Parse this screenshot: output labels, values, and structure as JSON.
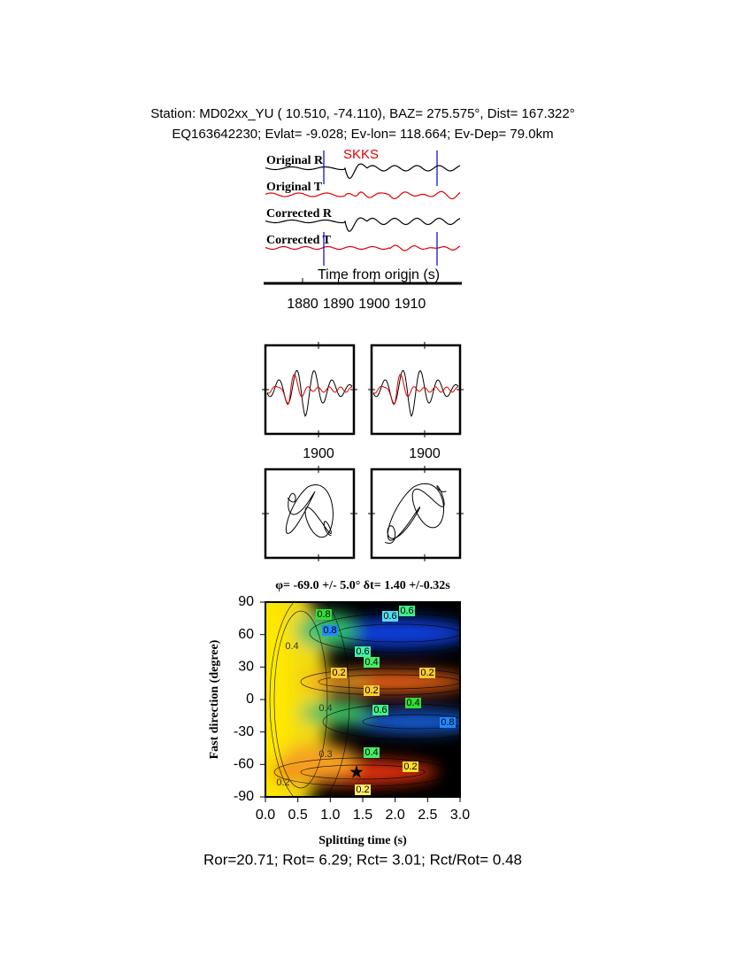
{
  "header": {
    "line1": "Station: MD02xx_YU (  10.510,  -74.110), BAZ=  275.575°, Dist=  167.322°",
    "line2": "EQ163642230; Evlat=  -9.028; Ev-lon= 118.664; Ev-Dep= 79.0km"
  },
  "traces": {
    "labels": [
      "Original R",
      "Original T",
      "Corrected R",
      "Corrected T"
    ],
    "phase": "SKKS",
    "xlabel": "Time from origin (s)",
    "xticks": [
      "1880",
      "1890",
      "1900",
      "1910"
    ]
  },
  "windows": {
    "xticks": [
      "1900",
      "1900"
    ]
  },
  "grid_search": {
    "title": "φ= -69.0 +/- 5.0° δt= 1.40 +/-0.32s",
    "xlabel": "Splitting time (s)",
    "ylabel": "Fast direction (degree)",
    "xticks": [
      "0.0",
      "0.5",
      "1.0",
      "1.5",
      "2.0",
      "2.5",
      "3.0"
    ],
    "yticks": [
      "90",
      "60",
      "30",
      "0",
      "-30",
      "-60",
      "-90"
    ],
    "contour_labels": [
      "0.8",
      "0.6",
      "0.4",
      "0.6",
      "0.8",
      "0.6",
      "0.4",
      "0.2",
      "0.2",
      "0.2",
      "0.4",
      "0.6",
      "0.4",
      "0.8",
      "0.4",
      "0.3",
      "0.2",
      "0.2",
      "0.2"
    ]
  },
  "footer": "Ror=20.71; Rot= 6.29; Rct= 3.01; Rct/Rot= 0.48"
}
